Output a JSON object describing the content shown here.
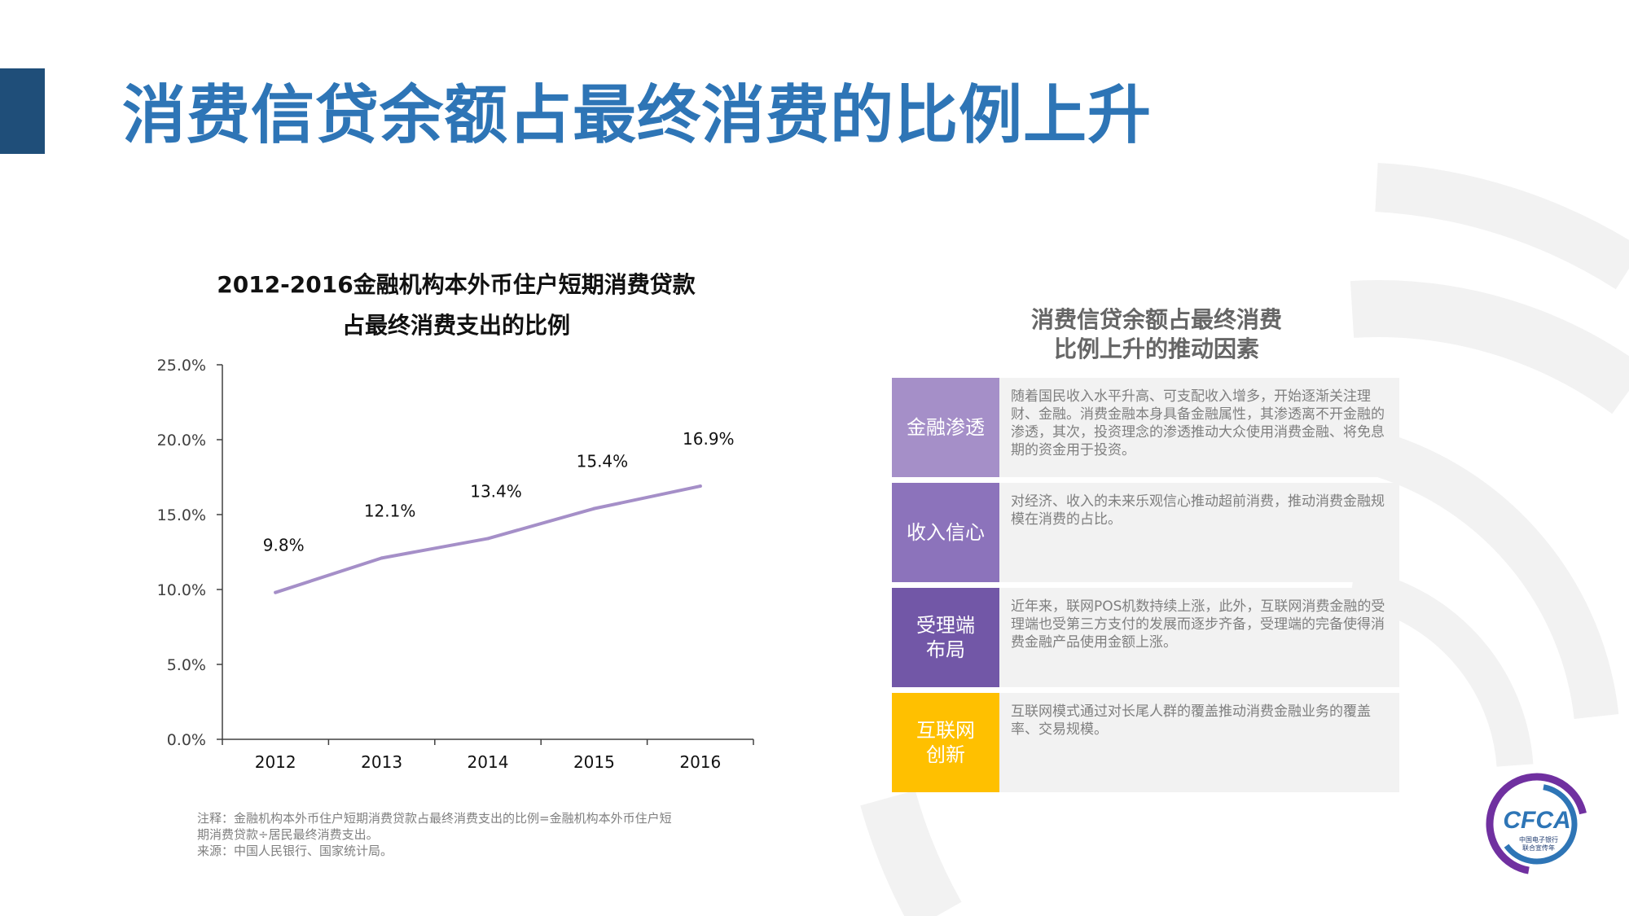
{
  "page": {
    "title": "消费信贷余额占最终消费的比例上升"
  },
  "chart_title": [
    "2012-2016金融机构本外币住户短期消费贷款",
    "占最终消费支出的比例"
  ],
  "chart_data": {
    "type": "line",
    "title": "2012-2016金融机构本外币住户短期消费贷款占最终消费支出的比例",
    "categories": [
      "2012",
      "2013",
      "2014",
      "2015",
      "2016"
    ],
    "series": [
      {
        "values": [
          9.8,
          12.1,
          13.4,
          15.4,
          16.9
        ]
      }
    ],
    "data_labels": [
      "9.8%",
      "12.1%",
      "13.4%",
      "15.4%",
      "16.9%"
    ],
    "ylim": [
      0,
      25
    ],
    "yticks": [
      0,
      5,
      10,
      15,
      20,
      25
    ],
    "ytick_labels": [
      "0.0%",
      "5.0%",
      "10.0%",
      "15.0%",
      "20.0%",
      "25.0%"
    ],
    "grid": false,
    "line_color": "#a58fc8"
  },
  "note": [
    "注释：金融机构本外币住户短期消费贷款占最终消费支出的比例=金融机构本外币住户短",
    "期消费贷款÷居民最终消费支出。",
    "来源：中国人民银行、国家统计局。"
  ],
  "factors": {
    "title": [
      "消费信贷余额占最终消费",
      "比例上升的推动因素"
    ],
    "items": [
      {
        "label": "金融渗透",
        "color": "#a58fc8",
        "description": "随着国民收入水平升高、可支配收入增多，开始逐渐关注理财、金融。消费金融本身具备金融属性，其渗透离不开金融的渗透，其次，投资理念的渗透推动大众使用消费金融、将免息期的资金用于投资。"
      },
      {
        "label": "收入信心",
        "color": "#8c73bb",
        "description": "对经济、收入的未来乐观信心推动超前消费，推动消费金融规模在消费的占比。"
      },
      {
        "label": "受理端布局",
        "label_lines": [
          "受理端",
          "布局"
        ],
        "color": "#7257a7",
        "description": "近年来，联网POS机数持续上涨，此外，互联网消费金融的受理端也受第三方支付的发展而逐步齐备，受理端的完备使得消费金融产品使用金额上涨。"
      },
      {
        "label": "互联网创新",
        "label_lines": [
          "互联网",
          "创新"
        ],
        "color": "#ffc000",
        "description": "互联网模式通过对长尾人群的覆盖推动消费金融业务的覆盖率、交易规模。"
      }
    ]
  },
  "logo": {
    "text": "CFCA",
    "subtext": [
      "中国电子银行",
      "联合宣传年"
    ],
    "colors": [
      "#2e75b6",
      "#7030a0"
    ]
  }
}
